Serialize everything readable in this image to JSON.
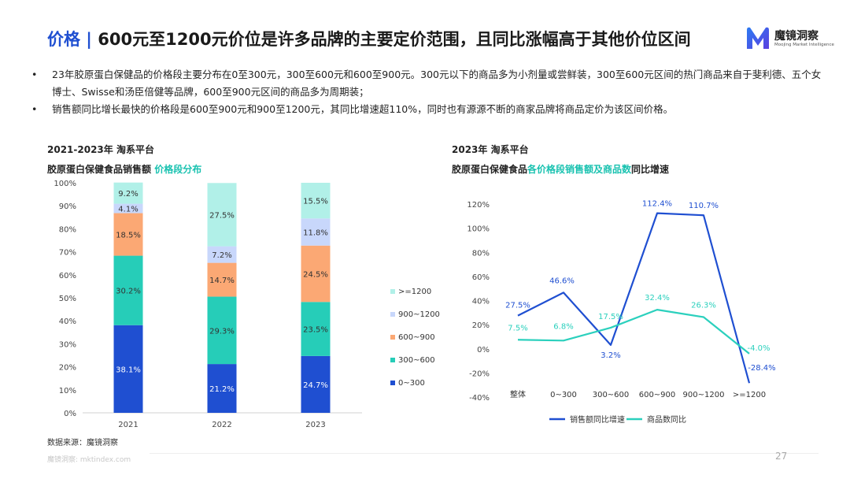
{
  "header": {
    "title_prefix": "价格 | ",
    "title_main": "600元至1200元价位是许多品牌的主要定价范围，且同比涨幅高于其他价位区间",
    "logo_name": "魔镜洞察",
    "logo_sub": "Moojing Market Intelligence"
  },
  "bullets": [
    "23年胶原蛋白保健品的价格段主要分布在0至300元，300至600元和600至900元。300元以下的商品多为小剂量或尝鲜装，300至600元区间的热门商品来自于斐利德、五个女博士、Swisse和汤臣倍健等品牌，600至900元区间的商品多为周期装；",
    "销售额同比增长最快的价格段是600至900元和900至1200元，其同比增速超110%，同时也有源源不断的商家品牌将商品定价为该区间价格。"
  ],
  "bullet_marker": "•",
  "left_panel": {
    "subtitle": "2021-2023年 淘系平台",
    "title_plain": "胶原蛋白保健食品销售额 ",
    "title_highlight": "价格段分布"
  },
  "right_panel": {
    "subtitle": "2023年 淘系平台",
    "title_part1": "胶原蛋白保健食品",
    "title_highlight": "各价格段销售额及商品数",
    "title_part3": "同比增速"
  },
  "source": "数据来源：魔镜洞察",
  "footer": {
    "website": "魔镜洞察: mktindex.com",
    "page": "27"
  },
  "chart_data": [
    {
      "type": "bar",
      "stacked": true,
      "percent": true,
      "categories": [
        "2021",
        "2022",
        "2023"
      ],
      "ylim": [
        0,
        100
      ],
      "yticks": [
        "0%",
        "10%",
        "20%",
        "30%",
        "40%",
        "50%",
        "60%",
        "70%",
        "80%",
        "90%",
        "100%"
      ],
      "legend_position": "right",
      "series": [
        {
          "name": "0~300",
          "color": "#1f4fd1",
          "values": [
            38.1,
            21.2,
            24.7
          ],
          "labels": [
            "38.1%",
            "21.2%",
            "24.7%"
          ]
        },
        {
          "name": "300~600",
          "color": "#26cdb8",
          "values": [
            30.2,
            29.3,
            23.5
          ],
          "labels": [
            "30.2%",
            "29.3%",
            "23.5%"
          ]
        },
        {
          "name": "600~900",
          "color": "#fba874",
          "values": [
            18.5,
            14.7,
            24.5
          ],
          "labels": [
            "18.5%",
            "14.7%",
            "24.5%"
          ]
        },
        {
          "name": "900~1200",
          "color": "#c8d7fb",
          "values": [
            4.1,
            7.2,
            11.8
          ],
          "labels": [
            "4.1%",
            "7.2%",
            "11.8%"
          ]
        },
        {
          "name": ">=1200",
          "color": "#b1f0e8",
          "values": [
            9.2,
            27.5,
            15.5
          ],
          "labels": [
            "9.2%",
            "27.5%",
            "15.5%"
          ]
        }
      ]
    },
    {
      "type": "line",
      "categories": [
        "整体",
        "0~300",
        "300~600",
        "600~900",
        "900~1200",
        ">=1200"
      ],
      "ylim": [
        -40,
        120
      ],
      "yticks": [
        "-40%",
        "-20%",
        "0%",
        "20%",
        "40%",
        "60%",
        "80%",
        "100%",
        "120%"
      ],
      "legend_position": "bottom",
      "series": [
        {
          "name": "销售额同比增速",
          "color": "#1f4fd1",
          "values": [
            27.5,
            46.6,
            3.2,
            112.4,
            110.7,
            -28.4
          ],
          "labels": [
            "27.5%",
            "46.6%",
            "3.2%",
            "112.4%",
            "110.7%",
            "-28.4%"
          ]
        },
        {
          "name": "商品数同比",
          "color": "#2bd0bd",
          "values": [
            7.5,
            6.8,
            17.5,
            32.4,
            26.3,
            -4.0
          ],
          "labels": [
            "7.5%",
            "6.8%",
            "17.5%",
            "32.4%",
            "26.3%",
            "-4.0%"
          ]
        }
      ]
    }
  ]
}
